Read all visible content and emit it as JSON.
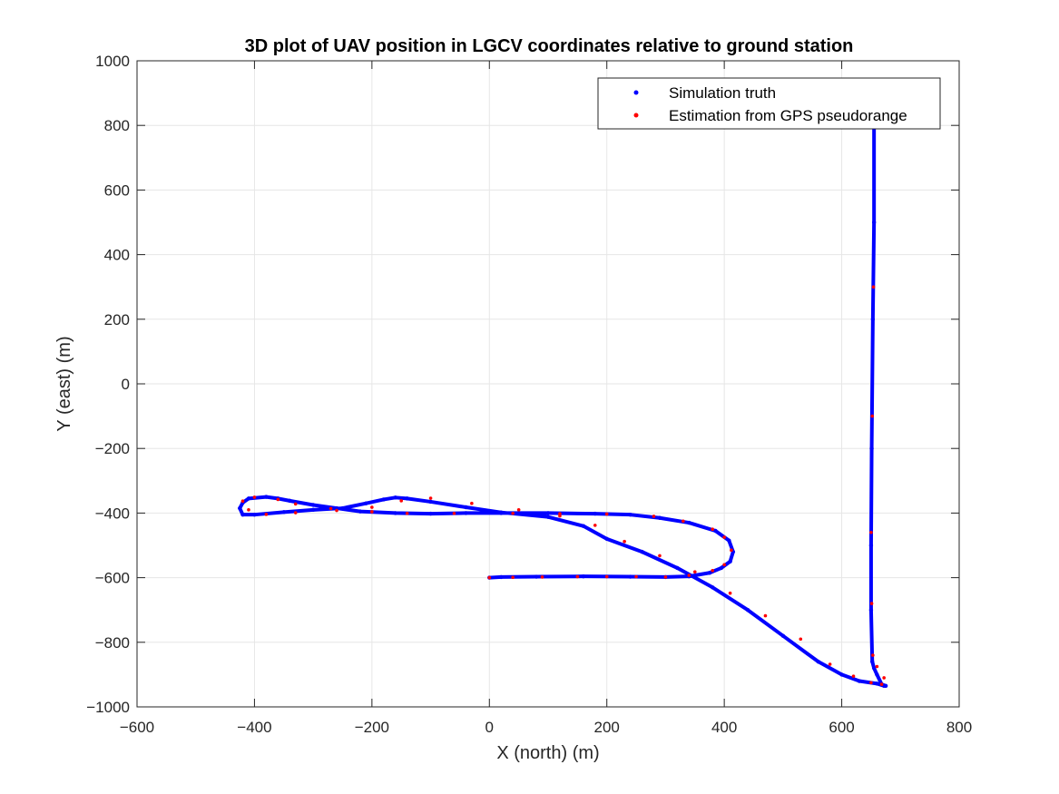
{
  "chart_data": {
    "type": "scatter",
    "title": "3D plot of UAV position in LGCV coordinates relative to ground station",
    "xlabel": "X (north) (m)",
    "ylabel": "Y (east) (m)",
    "xlim": [
      -600,
      800
    ],
    "ylim": [
      -1000,
      1000
    ],
    "xticks": [
      -600,
      -400,
      -200,
      0,
      200,
      400,
      600,
      800
    ],
    "yticks": [
      -1000,
      -800,
      -600,
      -400,
      -200,
      0,
      200,
      400,
      600,
      800,
      1000
    ],
    "xtick_labels": [
      "−600",
      "−400",
      "−200",
      "0",
      "200",
      "400",
      "600",
      "800"
    ],
    "ytick_labels": [
      "−1000",
      "−800",
      "−600",
      "−400",
      "−200",
      "0",
      "200",
      "400",
      "600",
      "800",
      "1000"
    ],
    "grid": true,
    "legend_position": "top-right",
    "series": [
      {
        "name": "Simulation truth",
        "color": "#0000ff",
        "marker": "dot",
        "x": [
          0,
          20,
          80,
          160,
          240,
          300,
          340,
          375,
          395,
          410,
          415,
          408,
          385,
          340,
          290,
          240,
          180,
          100,
          20,
          -40,
          -100,
          -160,
          -220,
          -260,
          -300,
          -340,
          -360,
          -380,
          -410,
          -420,
          -425,
          -420,
          -400,
          -350,
          -300,
          -250,
          -210,
          -180,
          -160,
          -140,
          -100,
          -40,
          20,
          100,
          160,
          200,
          260,
          320,
          380,
          440,
          500,
          560,
          600,
          630,
          660,
          672,
          675,
          668,
          660,
          655,
          652,
          650,
          650,
          651,
          653,
          655,
          655
        ],
        "y": [
          -600,
          -598,
          -597,
          -596,
          -597,
          -598,
          -596,
          -585,
          -570,
          -550,
          -520,
          -485,
          -455,
          -430,
          -415,
          -405,
          -402,
          -400,
          -400,
          -400,
          -402,
          -400,
          -395,
          -385,
          -375,
          -362,
          -355,
          -350,
          -355,
          -368,
          -385,
          -405,
          -405,
          -397,
          -390,
          -385,
          -370,
          -358,
          -352,
          -355,
          -365,
          -382,
          -398,
          -412,
          -440,
          -480,
          -520,
          -570,
          -630,
          -700,
          -780,
          -860,
          -900,
          -920,
          -928,
          -935,
          -935,
          -930,
          -900,
          -880,
          -860,
          -700,
          -500,
          -200,
          200,
          500,
          800
        ]
      },
      {
        "name": "Estimation from GPS pseudorange",
        "color": "#ff0000",
        "marker": "dot",
        "x": [
          0,
          40,
          90,
          150,
          200,
          250,
          300,
          340,
          380,
          400,
          412,
          400,
          380,
          330,
          280,
          200,
          120,
          40,
          -60,
          -140,
          -200,
          -270,
          -330,
          -360,
          -400,
          -420,
          -410,
          -380,
          -330,
          -260,
          -200,
          -150,
          -100,
          -30,
          50,
          120,
          180,
          230,
          290,
          350,
          410,
          470,
          530,
          580,
          620,
          650,
          668,
          672,
          660,
          653,
          651,
          650,
          652,
          654
        ],
        "y": [
          -600,
          -599,
          -598,
          -597,
          -597,
          -597,
          -598,
          -593,
          -578,
          -560,
          -515,
          -475,
          -450,
          -425,
          -410,
          -403,
          -402,
          -401,
          -401,
          -401,
          -396,
          -386,
          -372,
          -358,
          -351,
          -363,
          -390,
          -404,
          -399,
          -392,
          -382,
          -362,
          -354,
          -370,
          -390,
          -409,
          -438,
          -488,
          -532,
          -582,
          -648,
          -718,
          -790,
          -868,
          -905,
          -925,
          -930,
          -910,
          -875,
          -840,
          -680,
          -460,
          -100,
          300
        ]
      }
    ]
  },
  "legend": {
    "entries": [
      "Simulation truth",
      "Estimation from GPS pseudorange"
    ]
  }
}
